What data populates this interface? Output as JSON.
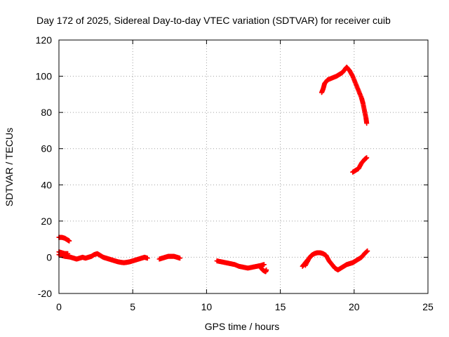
{
  "chart_data": {
    "type": "scatter",
    "title": "Day 172 of 2025, Sidereal Day-to-day VTEC variation (SDTVAR) for receiver cuib",
    "xlabel": "GPS time / hours",
    "ylabel": "SDTVAR / TECUs",
    "xlim": [
      0,
      25
    ],
    "ylim": [
      -20,
      120
    ],
    "xticks": [
      0,
      5,
      10,
      15,
      20,
      25
    ],
    "yticks": [
      -20,
      0,
      20,
      40,
      60,
      80,
      100,
      120
    ],
    "grid": true,
    "legend": "none",
    "marker_color": "#ff0000",
    "series": [
      {
        "points": [
          [
            0.0,
            1.5
          ],
          [
            0.2,
            1.0
          ],
          [
            0.4,
            0.5
          ],
          [
            0.6,
            0.3
          ],
          [
            0.8,
            0.0
          ],
          [
            1.0,
            -0.5
          ],
          [
            1.2,
            -1.0
          ],
          [
            1.4,
            -0.5
          ],
          [
            1.6,
            0.0
          ],
          [
            1.8,
            -0.5
          ],
          [
            2.0,
            0.0
          ],
          [
            2.2,
            0.5
          ],
          [
            2.4,
            1.5
          ],
          [
            2.6,
            2.0
          ],
          [
            2.8,
            1.0
          ],
          [
            3.0,
            0.0
          ],
          [
            3.2,
            -0.5
          ],
          [
            3.4,
            -1.0
          ],
          [
            3.6,
            -1.5
          ],
          [
            3.8,
            -2.0
          ],
          [
            4.0,
            -2.5
          ],
          [
            4.2,
            -2.8
          ],
          [
            4.4,
            -3.0
          ],
          [
            4.6,
            -2.8
          ],
          [
            4.8,
            -2.5
          ],
          [
            5.0,
            -2.0
          ],
          [
            5.2,
            -1.5
          ],
          [
            5.4,
            -1.0
          ],
          [
            5.6,
            -0.5
          ],
          [
            5.8,
            0.0
          ],
          [
            6.0,
            -0.5
          ]
        ]
      },
      {
        "points": [
          [
            0.0,
            11.0
          ],
          [
            0.2,
            11.0
          ],
          [
            0.4,
            10.5
          ],
          [
            0.6,
            9.5
          ],
          [
            0.7,
            9.0
          ]
        ]
      },
      {
        "points": [
          [
            0.0,
            3.0
          ],
          [
            0.2,
            2.5
          ],
          [
            0.4,
            2.0
          ],
          [
            0.6,
            2.0
          ]
        ]
      },
      {
        "points": [
          [
            6.8,
            -1.0
          ],
          [
            7.0,
            -0.5
          ],
          [
            7.2,
            0.0
          ],
          [
            7.4,
            0.5
          ],
          [
            7.6,
            0.5
          ],
          [
            7.8,
            0.5
          ],
          [
            8.0,
            0.0
          ],
          [
            8.2,
            -0.5
          ]
        ]
      },
      {
        "points": [
          [
            10.7,
            -2.0
          ],
          [
            11.0,
            -2.5
          ],
          [
            11.3,
            -3.0
          ],
          [
            11.6,
            -3.5
          ],
          [
            11.9,
            -4.0
          ],
          [
            12.2,
            -5.0
          ],
          [
            12.5,
            -5.5
          ],
          [
            12.8,
            -6.0
          ],
          [
            13.1,
            -5.5
          ],
          [
            13.4,
            -5.0
          ],
          [
            13.7,
            -4.5
          ],
          [
            13.9,
            -4.0
          ]
        ]
      },
      {
        "points": [
          [
            13.6,
            -5.0
          ],
          [
            13.8,
            -7.0
          ],
          [
            14.0,
            -8.0
          ],
          [
            14.05,
            -7.0
          ]
        ]
      },
      {
        "points": [
          [
            16.5,
            -5.0
          ],
          [
            16.7,
            -3.0
          ],
          [
            16.9,
            -1.0
          ],
          [
            17.1,
            1.0
          ],
          [
            17.3,
            2.0
          ],
          [
            17.5,
            2.5
          ],
          [
            17.7,
            2.5
          ],
          [
            17.9,
            2.0
          ],
          [
            18.1,
            1.0
          ],
          [
            18.3,
            -2.0
          ],
          [
            18.5,
            -4.0
          ],
          [
            18.7,
            -6.0
          ],
          [
            18.9,
            -7.0
          ],
          [
            19.1,
            -6.0
          ],
          [
            19.3,
            -5.0
          ],
          [
            19.5,
            -4.0
          ],
          [
            19.7,
            -3.5
          ],
          [
            19.9,
            -3.0
          ],
          [
            20.1,
            -2.0
          ],
          [
            20.3,
            -1.0
          ],
          [
            20.5,
            0.0
          ],
          [
            20.7,
            2.0
          ],
          [
            20.9,
            3.5
          ]
        ]
      },
      {
        "points": [
          [
            16.7,
            -4.5
          ],
          [
            17.0,
            0.0
          ],
          [
            17.2,
            1.5
          ]
        ]
      },
      {
        "points": [
          [
            17.8,
            91.0
          ],
          [
            17.9,
            93.0
          ],
          [
            18.0,
            96.0
          ],
          [
            18.2,
            98.0
          ],
          [
            18.5,
            99.0
          ],
          [
            18.8,
            100.0
          ],
          [
            19.0,
            101.0
          ],
          [
            19.2,
            102.0
          ],
          [
            19.4,
            104.0
          ],
          [
            19.5,
            105.0
          ],
          [
            19.7,
            103.0
          ],
          [
            19.9,
            100.0
          ],
          [
            20.1,
            96.0
          ],
          [
            20.3,
            92.0
          ],
          [
            20.5,
            88.0
          ],
          [
            20.6,
            85.0
          ],
          [
            20.7,
            81.0
          ],
          [
            20.8,
            77.0
          ],
          [
            20.85,
            74.0
          ]
        ]
      },
      {
        "points": [
          [
            19.9,
            47.0
          ],
          [
            20.1,
            48.0
          ],
          [
            20.3,
            49.0
          ],
          [
            20.5,
            52.0
          ],
          [
            20.7,
            54.0
          ],
          [
            20.85,
            55.0
          ]
        ]
      }
    ]
  }
}
